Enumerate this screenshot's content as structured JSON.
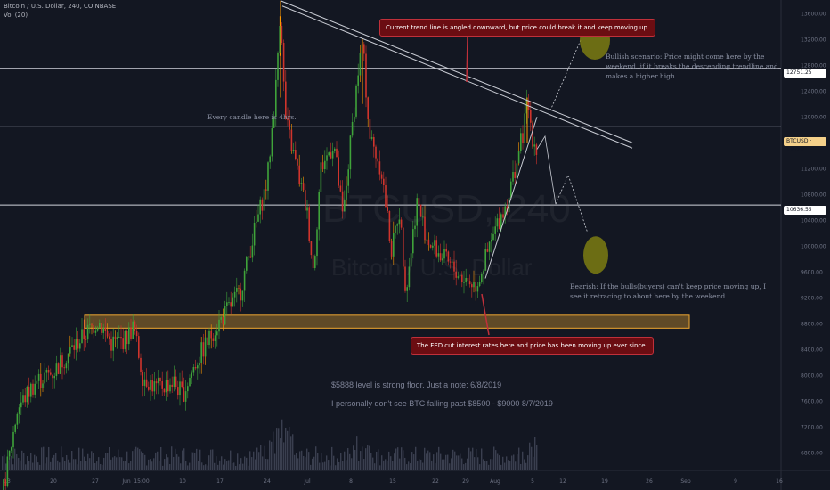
{
  "header": {
    "symbol_line": "Bitcoin / U.S. Dollar, 240, COINBASE",
    "volume_label": "Vol (20)"
  },
  "watermark": {
    "symbol": "BTCUSD, 240",
    "name": "Bitcoin / U.S. Dollar"
  },
  "colors": {
    "background": "#131722",
    "up_candle": "#26a69a",
    "down_candle": "#ef5350",
    "up_candle_shown": "#3fa33a",
    "down_candle_shown": "#d0342c",
    "wick_highlight": "#ff9800",
    "support_zone": "#f0a830",
    "ellipse_fill": "#7d7d12",
    "callout_bg": "#6b0d12"
  },
  "annotations": {
    "top_callout": "Current trend line is angled downward, but price could break it and keep moving up.",
    "bottom_callout": "The FED cut interest rates here and price has been moving up ever since.",
    "candle_note": "Every candle here is 4hrs.",
    "bullish_note": "Bullish scenario: Price might come here by the weekend, if it breaks the descending trendline and makes a higher high",
    "bearish_note": "Bearish: If the bulls(buyers) can't keep price moving up, I see it retracing to about here by the weekend.",
    "floor_note": "$5888 level is strong floor. Just a note: 6/8/2019",
    "falling_note": "I personally don't see BTC falling past $8500 - $9000 8/7/2019"
  },
  "price_labels": [
    {
      "name": "level-12751",
      "value": "12751.25"
    },
    {
      "name": "btcusd-current",
      "value": "BTCUSD · 11529"
    },
    {
      "name": "level-10636",
      "value": "10636.55"
    }
  ],
  "chart_data": {
    "type": "candlestick",
    "title": "Bitcoin / U.S. Dollar, 240, COINBASE",
    "timeframe": "240",
    "x_ticks": [
      "13",
      "20",
      "27",
      "Jun",
      "15:00",
      "10",
      "17",
      "24",
      "Jul",
      "8",
      "15",
      "22",
      "29",
      "Aug",
      "5",
      "12",
      "19",
      "26",
      "Sep",
      "9",
      "16"
    ],
    "y_ticks": [
      13600,
      13200,
      12800,
      12400,
      12000,
      11600,
      11200,
      10800,
      10400,
      10000,
      9600,
      9200,
      8800,
      8400,
      8000,
      7600,
      7200,
      6800
    ],
    "ylim": [
      6500,
      13700
    ],
    "horizontal_levels": [
      12751.25,
      10636.55,
      11529,
      11850,
      11350
    ],
    "support_zone": [
      8730,
      8930
    ],
    "descending_trendline": {
      "from": [
        "Jun 26",
        13800
      ],
      "to": [
        "Aug 22",
        11600
      ]
    },
    "ascending_trendline": {
      "from": [
        "Aug 1",
        9500
      ],
      "to": [
        "Aug 8",
        12000
      ]
    },
    "key_points": [
      {
        "label": "June high",
        "date": "Jun 26",
        "price": 13800
      },
      {
        "label": "July high",
        "date": "Jul 10",
        "price": 13200
      },
      {
        "label": "Late-July low",
        "date": "Jul 31",
        "price": 9400
      },
      {
        "label": "Aug spike",
        "date": "Aug 6",
        "price": 12300
      },
      {
        "label": "Last price",
        "date": "Aug 8",
        "price": 11529
      }
    ],
    "projections": [
      {
        "scenario": "bullish",
        "target_date": "Aug 11",
        "target_price": 13300
      },
      {
        "scenario": "bearish",
        "target_date": "Aug 12",
        "target_price": 10000
      }
    ]
  }
}
